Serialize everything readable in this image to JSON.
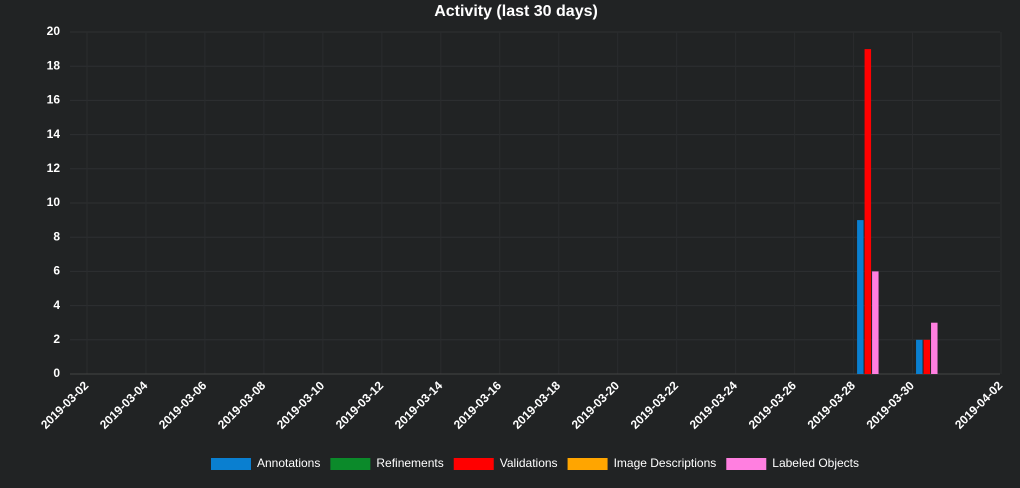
{
  "chart_data": {
    "type": "bar",
    "title": "Activity (last 30 days)",
    "x": [
      "2019-03-29",
      "2019-03-31"
    ],
    "series": [
      {
        "name": "Annotations",
        "color": "#0a7fd0",
        "values": [
          9,
          2
        ]
      },
      {
        "name": "Refinements",
        "color": "#0b8a2a",
        "values": [
          null,
          null
        ]
      },
      {
        "name": "Validations",
        "color": "#ff0000",
        "values": [
          19,
          2
        ]
      },
      {
        "name": "Image Descriptions",
        "color": "#ffa500",
        "values": [
          null,
          null
        ]
      },
      {
        "name": "Labeled Objects",
        "color": "#ff7fe0",
        "values": [
          6,
          3
        ]
      }
    ],
    "xlim": [
      "2019-03-02",
      "2019-04-02"
    ],
    "xticks": [
      "2019-03-02",
      "2019-03-04",
      "2019-03-06",
      "2019-03-08",
      "2019-03-10",
      "2019-03-12",
      "2019-03-14",
      "2019-03-16",
      "2019-03-18",
      "2019-03-20",
      "2019-03-22",
      "2019-03-24",
      "2019-03-26",
      "2019-03-28",
      "2019-03-30",
      "2019-04-02"
    ],
    "ylim": [
      0,
      20
    ],
    "yticks": [
      0,
      2,
      4,
      6,
      8,
      10,
      12,
      14,
      16,
      18,
      20
    ],
    "grid": true,
    "legend": "bottom"
  }
}
